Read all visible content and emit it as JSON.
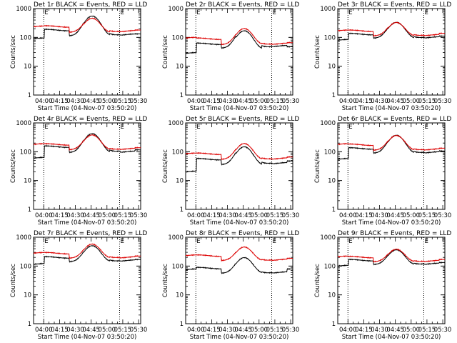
{
  "chart_data": [
    {
      "type": "line",
      "title": "Det 1r BLACK = Events, RED = LLD",
      "xlabel": "Start Time (04-Nov-07 03:50:20)",
      "ylabel": "Counts/sec",
      "yscale": "log",
      "ylim": [
        1,
        1000
      ],
      "x_ticks": [
        "04:00",
        "04:15",
        "04:30",
        "04:45",
        "05:00",
        "05:15",
        "05:30"
      ],
      "y_ticks": [
        "1",
        "10",
        "100",
        "1000"
      ],
      "markers": [
        "04:00",
        "05:12"
      ],
      "marker_labels": [
        "E",
        "E"
      ],
      "series": [
        {
          "color": "#000000",
          "base": [
            90,
            180,
            120,
            115,
            130,
            125,
            125,
            45
          ],
          "hump": [
            4.5,
            2.6
          ]
        },
        {
          "color": "#dd0000",
          "base": [
            235,
            240,
            160,
            150,
            170,
            165,
            170,
            175
          ],
          "hump": [
            2.9,
            1.5
          ]
        }
      ]
    },
    {
      "type": "line",
      "title": "Det 2r BLACK = Events, RED = LLD",
      "xlabel": "Start Time (04-Nov-07 03:50:20)",
      "ylabel": "Counts/sec",
      "yscale": "log",
      "ylim": [
        1,
        1000
      ],
      "x_ticks": [
        "04:00",
        "04:15",
        "04:30",
        "04:45",
        "05:00",
        "05:15",
        "05:30"
      ],
      "y_ticks": [
        "1",
        "10",
        "100",
        "1000"
      ],
      "markers": [
        "04:00",
        "05:12"
      ],
      "marker_labels": [
        "E",
        "E"
      ],
      "series": [
        {
          "color": "#000000",
          "base": [
            28,
            60,
            45,
            40,
            50,
            50,
            45,
            28
          ],
          "hump": [
            4.0,
            2.6
          ]
        },
        {
          "color": "#dd0000",
          "base": [
            95,
            90,
            60,
            58,
            62,
            60,
            62,
            80
          ],
          "hump": [
            3.3,
            1.4
          ]
        }
      ]
    },
    {
      "type": "line",
      "title": "Det 3r BLACK = Events, RED = LLD",
      "xlabel": "Start Time (04-Nov-07 03:50:20)",
      "ylabel": "Counts/sec",
      "yscale": "log",
      "ylim": [
        1,
        1000
      ],
      "x_ticks": [
        "04:00",
        "04:15",
        "04:30",
        "04:45",
        "05:00",
        "05:15",
        "05:30"
      ],
      "y_ticks": [
        "1",
        "10",
        "100",
        "1000"
      ],
      "markers": [
        "04:00",
        "05:12"
      ],
      "marker_labels": [
        "E",
        "E"
      ],
      "series": [
        {
          "color": "#000000",
          "base": [
            80,
            130,
            100,
            95,
            105,
            100,
            105,
            60
          ],
          "hump": [
            3.3,
            2.2
          ]
        },
        {
          "color": "#dd0000",
          "base": [
            170,
            170,
            120,
            115,
            125,
            120,
            130,
            150
          ],
          "hump": [
            2.7,
            1.5
          ]
        }
      ]
    },
    {
      "type": "line",
      "title": "Det 4r BLACK = Events, RED = LLD",
      "xlabel": "Start Time (04-Nov-07 03:50:20)",
      "ylabel": "Counts/sec",
      "yscale": "log",
      "ylim": [
        1,
        1000
      ],
      "x_ticks": [
        "04:00",
        "04:15",
        "04:30",
        "04:45",
        "05:00",
        "05:15",
        "05:30"
      ],
      "y_ticks": [
        "1",
        "10",
        "100",
        "1000"
      ],
      "markers": [
        "04:00",
        "05:12"
      ],
      "marker_labels": [
        "E",
        "E"
      ],
      "series": [
        {
          "color": "#000000",
          "base": [
            60,
            150,
            100,
            95,
            110,
            100,
            110,
            35
          ],
          "hump": [
            4.2,
            2.6
          ]
        },
        {
          "color": "#dd0000",
          "base": [
            180,
            180,
            125,
            120,
            130,
            125,
            130,
            160
          ],
          "hump": [
            3.0,
            1.5
          ]
        }
      ]
    },
    {
      "type": "line",
      "title": "Det 5r BLACK = Events, RED = LLD",
      "xlabel": "Start Time (04-Nov-07 03:50:20)",
      "ylabel": "Counts/sec",
      "yscale": "log",
      "ylim": [
        1,
        1000
      ],
      "x_ticks": [
        "04:00",
        "04:15",
        "04:30",
        "04:45",
        "05:00",
        "05:15",
        "05:30"
      ],
      "y_ticks": [
        "1",
        "10",
        "100",
        "1000"
      ],
      "markers": [
        "04:00",
        "05:12"
      ],
      "marker_labels": [
        "E",
        "E"
      ],
      "series": [
        {
          "color": "#000000",
          "base": [
            20,
            55,
            38,
            35,
            42,
            40,
            45,
            25
          ],
          "hump": [
            4.0,
            2.6
          ]
        },
        {
          "color": "#dd0000",
          "base": [
            85,
            85,
            58,
            55,
            60,
            58,
            62,
            100
          ],
          "hump": [
            3.3,
            1.4
          ]
        }
      ]
    },
    {
      "type": "line",
      "title": "Det 6r BLACK = Events, RED = LLD",
      "xlabel": "Start Time (04-Nov-07 03:50:20)",
      "ylabel": "Counts/sec",
      "yscale": "log",
      "ylim": [
        1,
        1000
      ],
      "x_ticks": [
        "04:00",
        "04:15",
        "04:30",
        "04:45",
        "05:00",
        "05:15",
        "05:30"
      ],
      "y_ticks": [
        "1",
        "10",
        "100",
        "1000"
      ],
      "markers": [
        "04:00",
        "05:12"
      ],
      "marker_labels": [
        "E",
        "E"
      ],
      "series": [
        {
          "color": "#000000",
          "base": [
            55,
            130,
            95,
            90,
            100,
            95,
            100,
            50
          ],
          "hump": [
            3.9,
            2.4
          ]
        },
        {
          "color": "#dd0000",
          "base": [
            180,
            175,
            120,
            115,
            125,
            120,
            125,
            160
          ],
          "hump": [
            3.0,
            1.6
          ]
        }
      ]
    },
    {
      "type": "line",
      "title": "Det 7r BLACK = Events, RED = LLD",
      "xlabel": "Start Time (04-Nov-07 03:50:20)",
      "ylabel": "Counts/sec",
      "yscale": "log",
      "ylim": [
        1,
        1000
      ],
      "x_ticks": [
        "04:00",
        "04:15",
        "04:30",
        "04:45",
        "05:00",
        "05:15",
        "05:30"
      ],
      "y_ticks": [
        "1",
        "10",
        "100",
        "1000"
      ],
      "markers": [
        "04:00",
        "05:12"
      ],
      "marker_labels": [
        "E",
        "E"
      ],
      "series": [
        {
          "color": "#000000",
          "base": [
            115,
            200,
            150,
            145,
            160,
            155,
            160,
            100
          ],
          "hump": [
            3.3,
            2.1
          ]
        },
        {
          "color": "#dd0000",
          "base": [
            280,
            280,
            200,
            195,
            210,
            200,
            210,
            240
          ],
          "hump": [
            2.8,
            1.5
          ]
        }
      ]
    },
    {
      "type": "line",
      "title": "Det 8r BLACK = Events, RED = LLD",
      "xlabel": "Start Time (04-Nov-07 03:50:20)",
      "ylabel": "Counts/sec",
      "yscale": "log",
      "ylim": [
        1,
        1000
      ],
      "x_ticks": [
        "04:00",
        "04:15",
        "04:30",
        "04:45",
        "05:00",
        "05:15",
        "05:30"
      ],
      "y_ticks": [
        "1",
        "10",
        "100",
        "1000"
      ],
      "markers": [
        "04:00",
        "05:12"
      ],
      "marker_labels": [
        "E",
        "E"
      ],
      "series": [
        {
          "color": "#000000",
          "base": [
            75,
            85,
            60,
            58,
            62,
            60,
            75,
            55
          ],
          "hump": [
            3.2,
            2.2
          ]
        },
        {
          "color": "#dd0000",
          "base": [
            230,
            230,
            165,
            160,
            170,
            165,
            175,
            210
          ],
          "hump": [
            2.7,
            1.5
          ]
        }
      ]
    },
    {
      "type": "line",
      "title": "Det 9r BLACK = Events, RED = LLD",
      "xlabel": "Start Time (04-Nov-07 03:50:20)",
      "ylabel": "Counts/sec",
      "yscale": "log",
      "ylim": [
        1,
        1000
      ],
      "x_ticks": [
        "04:00",
        "04:15",
        "04:30",
        "04:45",
        "05:00",
        "05:15",
        "05:30"
      ],
      "y_ticks": [
        "1",
        "10",
        "100",
        "1000"
      ],
      "markers": [
        "04:00",
        "05:12"
      ],
      "marker_labels": [
        "E",
        "E"
      ],
      "series": [
        {
          "color": "#000000",
          "base": [
            100,
            160,
            120,
            115,
            125,
            120,
            125,
            120
          ],
          "hump": [
            3.0,
            2.0
          ]
        },
        {
          "color": "#dd0000",
          "base": [
            210,
            205,
            150,
            145,
            155,
            150,
            160,
            160
          ],
          "hump": [
            2.5,
            1.4
          ]
        }
      ]
    }
  ]
}
